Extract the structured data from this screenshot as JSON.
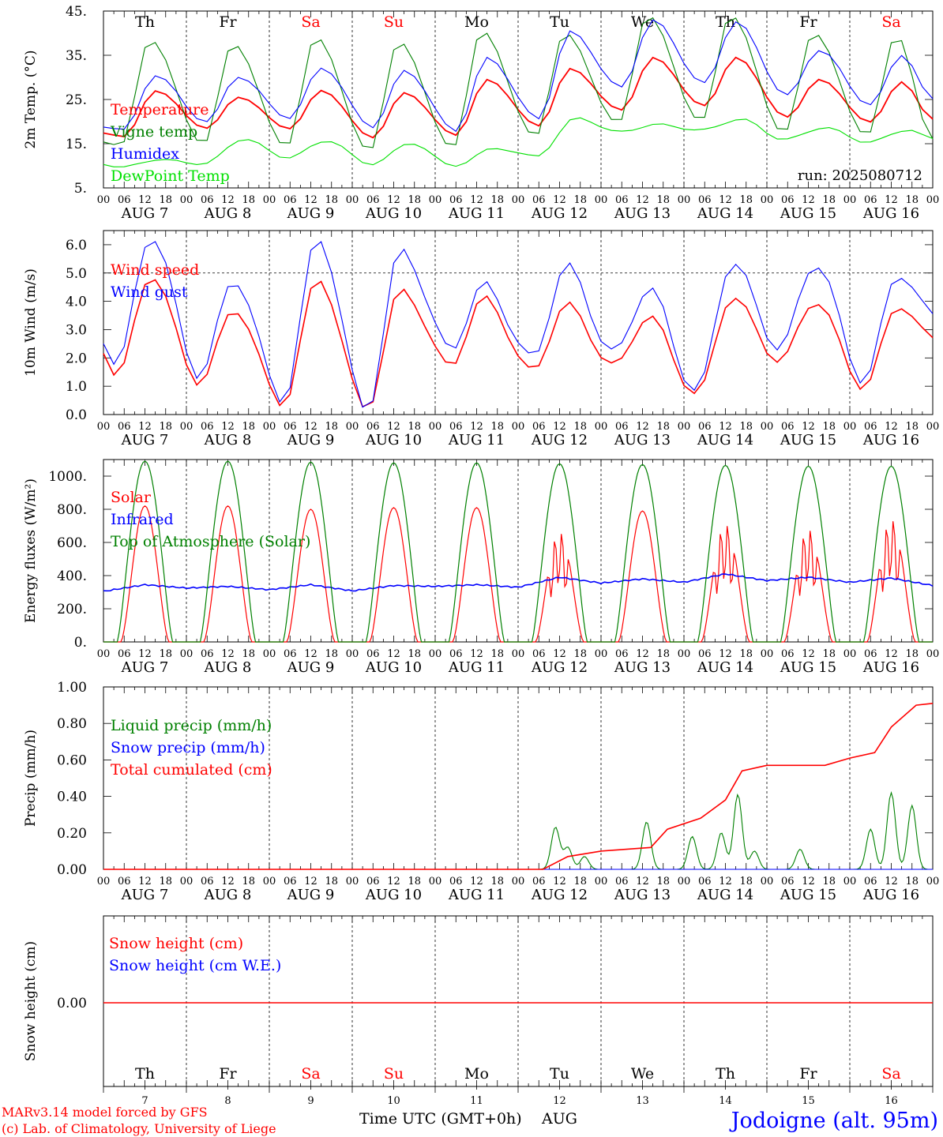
{
  "location": "Jodoigne (alt. 95m)",
  "credits": [
    "MARv3.14 model forced by GFS",
    "(c) Lab. of Climatology, University of Liege"
  ],
  "run": "run: 2025080712",
  "xaxis_label": "Time UTC (GMT+0h)",
  "month_label": "AUG",
  "weekdays": [
    {
      "label": "Th",
      "weekend": false
    },
    {
      "label": "Fr",
      "weekend": false
    },
    {
      "label": "Sa",
      "weekend": true
    },
    {
      "label": "Su",
      "weekend": true
    },
    {
      "label": "Mo",
      "weekend": false
    },
    {
      "label": "Tu",
      "weekend": false
    },
    {
      "label": "We",
      "weekend": false
    },
    {
      "label": "Th",
      "weekend": false
    },
    {
      "label": "Fr",
      "weekend": false
    },
    {
      "label": "Sa",
      "weekend": true
    }
  ],
  "day_numbers": [
    "7",
    "8",
    "9",
    "10",
    "11",
    "12",
    "13",
    "14",
    "15",
    "16"
  ],
  "date_labels": [
    "AUG  7",
    "AUG  8",
    "AUG  9",
    "AUG 10",
    "AUG 11",
    "AUG 12",
    "AUG 13",
    "AUG 14",
    "AUG 15",
    "AUG 16"
  ],
  "hour_ticks": [
    "00",
    "06",
    "12",
    "18"
  ],
  "colors": {
    "red": "#ff0000",
    "green": "#008000",
    "blue": "#0000ff",
    "lime": "#00e000",
    "black": "#000000"
  },
  "chart_data": [
    {
      "type": "line",
      "ylabel": "2m Temp. (°C)",
      "ylim": [
        5,
        45
      ],
      "yticks": [
        "5.",
        "15.",
        "25.",
        "35.",
        "45."
      ],
      "x_days": [
        7,
        16
      ],
      "series": [
        {
          "name": "Temperature",
          "color": "red",
          "daily_min": [
            16.5,
            18.5,
            18.5,
            16.5,
            17,
            19,
            22.5,
            23.5,
            21,
            20
          ],
          "daily_max": [
            27,
            25.5,
            27,
            26.5,
            29.5,
            32,
            34.5,
            34.5,
            29.5,
            29
          ],
          "end": 20.5
        },
        {
          "name": "Vigne temp",
          "color": "green",
          "daily_min": [
            14.5,
            15,
            14.5,
            13.5,
            14,
            16.5,
            19.5,
            20,
            17.5,
            17
          ],
          "daily_max": [
            38.5,
            37.5,
            39,
            38,
            40.5,
            40,
            44,
            44,
            40,
            39.5
          ],
          "end": 16
        },
        {
          "name": "Humidex",
          "color": "blue",
          "daily_min": [
            18,
            20,
            21,
            19,
            18,
            20.5,
            27.5,
            28.5,
            26,
            24
          ],
          "daily_max": [
            30.5,
            30,
            32,
            31.5,
            34.5,
            40.5,
            43,
            42.5,
            36,
            35
          ],
          "end": 25
        },
        {
          "name": "DewPoint Temp",
          "color": "lime",
          "daily_min": [
            9.5,
            10.5,
            12,
            10.5,
            10,
            12,
            17.5,
            18,
            16,
            15.5
          ],
          "daily_max": [
            11.5,
            16,
            15.5,
            15,
            14,
            21,
            19.5,
            20.5,
            18.5,
            18
          ],
          "end": 16
        }
      ]
    },
    {
      "type": "line",
      "ylabel": "10m Wind (m/s)",
      "ylim": [
        0,
        6.5
      ],
      "yticks": [
        "0.0",
        "1.0",
        "2.0",
        "3.0",
        "4.0",
        "5.0",
        "6.0"
      ],
      "ref_line": 5.0,
      "series": [
        {
          "name": "Wind speed",
          "color": "red",
          "daily_min": [
            1.3,
            1.2,
            0.5,
            0.3,
            1.7,
            1.4,
            1.6,
            0.7,
            2.0,
            1.1
          ],
          "daily_max": [
            4.9,
            3.6,
            4.7,
            4.4,
            4.2,
            4.0,
            3.5,
            4.1,
            3.9,
            3.8
          ],
          "end": 2.6
        },
        {
          "name": "Wind gust",
          "color": "blue",
          "daily_min": [
            1.7,
            1.5,
            0.7,
            0.3,
            2.3,
            1.8,
            2.0,
            0.8,
            2.5,
            1.4
          ],
          "daily_max": [
            6.3,
            4.6,
            6.1,
            5.8,
            4.7,
            5.4,
            4.5,
            5.3,
            5.2,
            4.9
          ],
          "end": 3.4
        }
      ]
    },
    {
      "type": "line",
      "ylabel": "Energy fluxes (W/m²)",
      "ylim": [
        0,
        1100
      ],
      "yticks": [
        "0.",
        "200.",
        "400.",
        "600.",
        "800.",
        "1000."
      ],
      "series": [
        {
          "name": "Solar",
          "color": "red",
          "daily_peak": [
            820,
            820,
            800,
            810,
            810,
            680,
            790,
            730,
            700,
            760
          ]
        },
        {
          "name": "Infrared",
          "color": "blue",
          "levels": [
            305,
            345,
            325,
            335,
            315,
            345,
            308,
            340,
            335,
            345,
            330,
            390,
            355,
            380,
            360,
            410,
            370,
            390,
            360,
            385,
            340
          ]
        },
        {
          "name": "Top of Atmosphere (Solar)",
          "color": "green",
          "daily_peak": [
            1090,
            1090,
            1085,
            1080,
            1080,
            1075,
            1070,
            1065,
            1060,
            1060
          ]
        }
      ]
    },
    {
      "type": "line",
      "ylabel": "Precip (mm/h)",
      "ylim": [
        0,
        1.0
      ],
      "yticks": [
        "0.00",
        "0.20",
        "0.40",
        "0.60",
        "0.80",
        "1.00"
      ],
      "series": [
        {
          "name": "Liquid precip (mm/h)",
          "color": "green",
          "events": [
            [
              12.45,
              0.23
            ],
            [
              12.6,
              0.12
            ],
            [
              12.8,
              0.07
            ],
            [
              13.55,
              0.26
            ],
            [
              14.1,
              0.18
            ],
            [
              14.45,
              0.2
            ],
            [
              14.65,
              0.41
            ],
            [
              14.85,
              0.1
            ],
            [
              15.4,
              0.11
            ],
            [
              16.25,
              0.22
            ],
            [
              16.5,
              0.42
            ],
            [
              16.75,
              0.35
            ]
          ]
        },
        {
          "name": "Snow precip (mm/h)",
          "color": "blue",
          "events": []
        },
        {
          "name": "Total cumulated (cm)",
          "color": "red",
          "x": [
            7,
            12.3,
            12.6,
            13.0,
            13.6,
            13.8,
            14.2,
            14.5,
            14.7,
            15.0,
            15.7,
            16.0,
            16.3,
            16.5,
            16.8,
            17.0
          ],
          "y": [
            0,
            0,
            0.07,
            0.1,
            0.12,
            0.22,
            0.28,
            0.38,
            0.54,
            0.57,
            0.57,
            0.61,
            0.64,
            0.78,
            0.9,
            0.91
          ]
        }
      ]
    },
    {
      "type": "line",
      "ylabel": "Snow height (cm)",
      "yticks": [
        "0.00"
      ],
      "series": [
        {
          "name": "Snow height (cm)",
          "color": "red",
          "value": 0
        },
        {
          "name": "Snow height (cm W.E.)",
          "color": "blue",
          "value": 0
        }
      ]
    }
  ]
}
